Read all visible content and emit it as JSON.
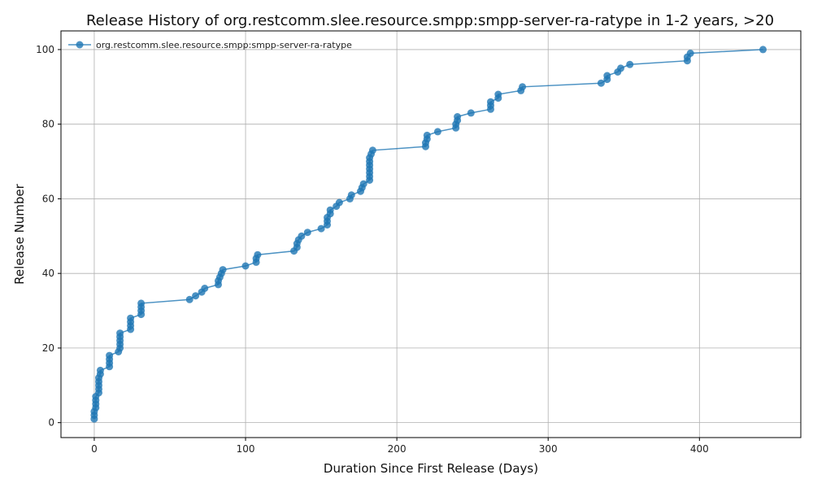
{
  "chart_data": {
    "type": "line",
    "title": "Release History of org.restcomm.slee.resource.smpp:smpp-server-ra-ratype in 1-2 years, >20",
    "xlabel": "Duration Since First Release (Days)",
    "ylabel": "Release Number",
    "xlim": [
      -22,
      467
    ],
    "ylim": [
      -4,
      105
    ],
    "xticks": [
      0,
      100,
      200,
      300,
      400
    ],
    "yticks": [
      0,
      20,
      40,
      60,
      80,
      100
    ],
    "grid": true,
    "legend_position": "top-left",
    "series_color": "#1f77b4",
    "series": [
      {
        "name": "org.restcomm.slee.resource.smpp:smpp-server-ra-ratype",
        "points": [
          [
            0,
            1
          ],
          [
            0,
            2
          ],
          [
            0,
            3
          ],
          [
            1,
            4
          ],
          [
            1,
            5
          ],
          [
            1,
            6
          ],
          [
            1,
            7
          ],
          [
            3,
            8
          ],
          [
            3,
            9
          ],
          [
            3,
            10
          ],
          [
            3,
            11
          ],
          [
            3,
            12
          ],
          [
            4,
            13
          ],
          [
            4,
            14
          ],
          [
            10,
            15
          ],
          [
            10,
            16
          ],
          [
            10,
            17
          ],
          [
            10,
            18
          ],
          [
            16,
            19
          ],
          [
            17,
            20
          ],
          [
            17,
            21
          ],
          [
            17,
            22
          ],
          [
            17,
            23
          ],
          [
            17,
            24
          ],
          [
            24,
            25
          ],
          [
            24,
            26
          ],
          [
            24,
            27
          ],
          [
            24,
            28
          ],
          [
            31,
            29
          ],
          [
            31,
            30
          ],
          [
            31,
            31
          ],
          [
            31,
            32
          ],
          [
            63,
            33
          ],
          [
            67,
            34
          ],
          [
            71,
            35
          ],
          [
            73,
            36
          ],
          [
            82,
            37
          ],
          [
            82,
            38
          ],
          [
            83,
            39
          ],
          [
            84,
            40
          ],
          [
            85,
            41
          ],
          [
            100,
            42
          ],
          [
            107,
            43
          ],
          [
            107,
            44
          ],
          [
            108,
            45
          ],
          [
            132,
            46
          ],
          [
            134,
            47
          ],
          [
            134,
            48
          ],
          [
            135,
            49
          ],
          [
            137,
            50
          ],
          [
            141,
            51
          ],
          [
            150,
            52
          ],
          [
            154,
            53
          ],
          [
            154,
            54
          ],
          [
            154,
            55
          ],
          [
            156,
            56
          ],
          [
            156,
            57
          ],
          [
            160,
            58
          ],
          [
            162,
            59
          ],
          [
            169,
            60
          ],
          [
            170,
            61
          ],
          [
            176,
            62
          ],
          [
            177,
            63
          ],
          [
            178,
            64
          ],
          [
            182,
            65
          ],
          [
            182,
            66
          ],
          [
            182,
            67
          ],
          [
            182,
            68
          ],
          [
            182,
            69
          ],
          [
            182,
            70
          ],
          [
            182,
            71
          ],
          [
            183,
            72
          ],
          [
            184,
            73
          ],
          [
            219,
            74
          ],
          [
            219,
            75
          ],
          [
            220,
            76
          ],
          [
            220,
            77
          ],
          [
            227,
            78
          ],
          [
            239,
            79
          ],
          [
            239,
            80
          ],
          [
            240,
            81
          ],
          [
            240,
            82
          ],
          [
            249,
            83
          ],
          [
            262,
            84
          ],
          [
            262,
            85
          ],
          [
            262,
            86
          ],
          [
            267,
            87
          ],
          [
            267,
            88
          ],
          [
            282,
            89
          ],
          [
            283,
            90
          ],
          [
            335,
            91
          ],
          [
            339,
            92
          ],
          [
            339,
            93
          ],
          [
            346,
            94
          ],
          [
            348,
            95
          ],
          [
            354,
            96
          ],
          [
            392,
            97
          ],
          [
            392,
            98
          ],
          [
            394,
            99
          ],
          [
            442,
            100
          ]
        ]
      }
    ]
  }
}
